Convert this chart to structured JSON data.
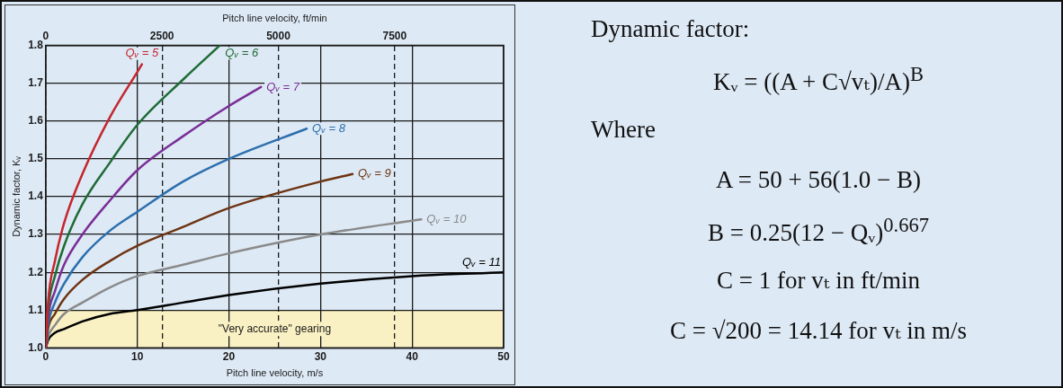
{
  "chart_data": {
    "type": "line",
    "xlabel": "Pitch line velocity, m/s",
    "x2label": "Pitch line velocity, ft/min",
    "ylabel": "Dynamic factor, Kᵥ",
    "xlim": [
      0,
      50
    ],
    "xticks": [
      0,
      10,
      20,
      30,
      40,
      50
    ],
    "x2lim": [
      0,
      9843
    ],
    "x2ticks": [
      0,
      2500,
      5000,
      7500
    ],
    "ylim": [
      1,
      1.8
    ],
    "yticks": [
      {
        "value": 1,
        "label": "1.0"
      },
      1.1,
      1.2,
      1.3,
      1.4,
      1.5,
      1.6,
      1.7,
      1.8
    ],
    "grid": true,
    "marker": "none",
    "bands": [
      {
        "axis": "y",
        "from": 1,
        "to": 1.1,
        "label": "\"Very accurate\" gearing",
        "color": "#f9f1c3"
      }
    ],
    "series": [
      {
        "name": "Qᵥ = 5",
        "color": "#c4262e",
        "x": [
          0,
          0.25,
          1,
          2,
          4,
          7,
          10,
          10.5
        ],
        "values": [
          1.0,
          1.12,
          1.23,
          1.33,
          1.46,
          1.61,
          1.73,
          1.75
        ]
      },
      {
        "name": "Qᵥ = 6",
        "color": "#1e6b35",
        "x": [
          0,
          0.25,
          1,
          2,
          4,
          7,
          10,
          15,
          19
        ],
        "values": [
          1.0,
          1.1,
          1.19,
          1.27,
          1.38,
          1.49,
          1.59,
          1.71,
          1.8
        ]
      },
      {
        "name": "Qᵥ = 7",
        "color": "#7a2d96",
        "x": [
          0,
          0.25,
          1,
          2,
          4,
          7,
          10,
          15,
          20,
          23.5
        ],
        "values": [
          1.0,
          1.08,
          1.15,
          1.22,
          1.3,
          1.39,
          1.47,
          1.56,
          1.64,
          1.69
        ]
      },
      {
        "name": "Qᵥ = 8",
        "color": "#2c6fad",
        "x": [
          0,
          0.25,
          1,
          2,
          4,
          7,
          10,
          15,
          20,
          28.5
        ],
        "values": [
          1.0,
          1.06,
          1.12,
          1.17,
          1.24,
          1.31,
          1.36,
          1.44,
          1.5,
          1.58
        ]
      },
      {
        "name": "Qᵥ = 9",
        "color": "#6e3412",
        "x": [
          0,
          0.25,
          1,
          2,
          4,
          7,
          10,
          15,
          20,
          30,
          33.5
        ],
        "values": [
          1.0,
          1.05,
          1.09,
          1.13,
          1.18,
          1.23,
          1.27,
          1.32,
          1.37,
          1.44,
          1.46
        ]
      },
      {
        "name": "Qᵥ = 10",
        "color": "#8a8a8a",
        "x": [
          0,
          0.25,
          1,
          2,
          4,
          7,
          10,
          15,
          20,
          30,
          41
        ],
        "values": [
          1.0,
          1.03,
          1.06,
          1.09,
          1.12,
          1.16,
          1.19,
          1.22,
          1.25,
          1.3,
          1.34
        ]
      },
      {
        "name": "Qᵥ = 11",
        "color": "#000000",
        "x": [
          0,
          0.25,
          1,
          2,
          4,
          7,
          10,
          15,
          20,
          30,
          40,
          50
        ],
        "values": [
          1.0,
          1.02,
          1.04,
          1.05,
          1.07,
          1.09,
          1.1,
          1.12,
          1.14,
          1.17,
          1.19,
          1.2
        ]
      }
    ],
    "annotations": [
      "Dynamic factor:",
      "Kᵥ = ((A + C√vₜ)/A)$^{B}$",
      "Where",
      "A = 50 + 56(1.0 − B)",
      "B = 0.25(12 − Qᵥ)$^{0.667}$",
      "C = 1 for vₜ in ft/min",
      "C = √200 = 14.14 for vₜ in m/s"
    ]
  }
}
